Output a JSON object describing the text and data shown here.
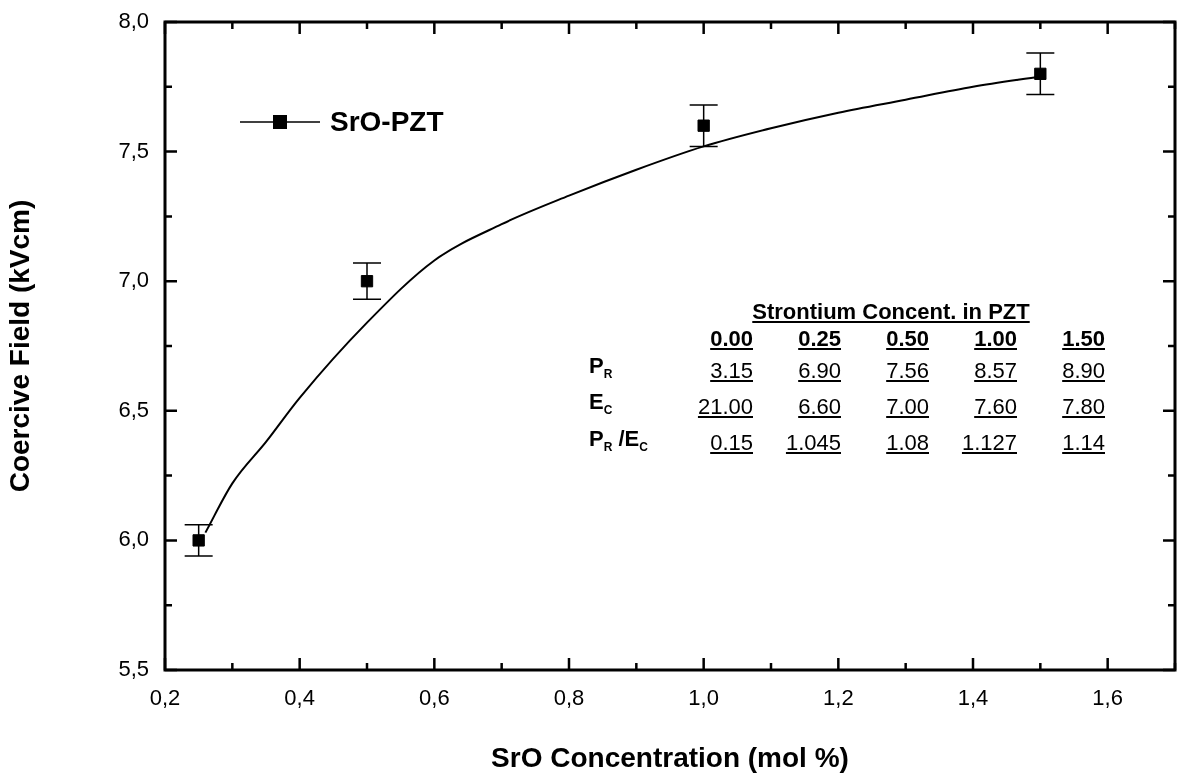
{
  "chart_data": {
    "type": "scatter",
    "xlabel": "SrO Concentration (mol %)",
    "ylabel": "Coercive Field (kVcm)",
    "xlim": [
      0.2,
      1.7
    ],
    "ylim": [
      5.5,
      8.0
    ],
    "xticks": [
      {
        "value": 0.2,
        "label": "0,2"
      },
      {
        "value": 0.3,
        "label": null
      },
      {
        "value": 0.4,
        "label": "0,4"
      },
      {
        "value": 0.5,
        "label": null
      },
      {
        "value": 0.6,
        "label": "0,6"
      },
      {
        "value": 0.7,
        "label": null
      },
      {
        "value": 0.8,
        "label": "0,8"
      },
      {
        "value": 0.9,
        "label": null
      },
      {
        "value": 1.0,
        "label": "1,0"
      },
      {
        "value": 1.1,
        "label": null
      },
      {
        "value": 1.2,
        "label": "1,2"
      },
      {
        "value": 1.3,
        "label": null
      },
      {
        "value": 1.4,
        "label": "1,4"
      },
      {
        "value": 1.5,
        "label": null
      },
      {
        "value": 1.6,
        "label": "1,6"
      },
      {
        "value": 1.7,
        "label": null
      }
    ],
    "yticks": [
      {
        "value": 5.5,
        "label": "5,5"
      },
      {
        "value": 5.75,
        "label": null
      },
      {
        "value": 6.0,
        "label": "6,0"
      },
      {
        "value": 6.25,
        "label": null
      },
      {
        "value": 6.5,
        "label": "6,5"
      },
      {
        "value": 6.75,
        "label": null
      },
      {
        "value": 7.0,
        "label": "7,0"
      },
      {
        "value": 7.25,
        "label": null
      },
      {
        "value": 7.5,
        "label": "7,5"
      },
      {
        "value": 7.75,
        "label": null
      },
      {
        "value": 8.0,
        "label": "8,0"
      }
    ],
    "legend": "top left",
    "series": [
      {
        "name": "SrO-PZT",
        "type": "scatter",
        "marker": "square",
        "color": "#000000",
        "x": [
          0.25,
          0.5,
          1.0,
          1.5
        ],
        "values": [
          6.0,
          7.0,
          7.6,
          7.8
        ],
        "errors": [
          0.06,
          0.07,
          0.08,
          0.08
        ]
      },
      {
        "type": "line",
        "marker": "none",
        "color": "#000000",
        "x": [
          0.26,
          0.3,
          0.35,
          0.4,
          0.5,
          0.6,
          0.7,
          0.8,
          0.9,
          1.0,
          1.1,
          1.2,
          1.3,
          1.4,
          1.5
        ],
        "values": [
          6.03,
          6.22,
          6.38,
          6.55,
          6.84,
          7.08,
          7.22,
          7.33,
          7.43,
          7.52,
          7.59,
          7.65,
          7.7,
          7.75,
          7.79
        ]
      }
    ],
    "annotations": [
      "Strontium Concent. in PZT",
      "0.00",
      "0.25",
      "0.50",
      "1.00",
      "1.50",
      "P$_{R}$",
      "3.15",
      "6.90",
      "7.56",
      "8.57",
      "8.90",
      "E$_{C}$",
      "21.00",
      "6.60",
      "7.00",
      "7.60",
      "7.80",
      "P$_{R}$ /E$_{C}$",
      "0.15",
      "1.045",
      "1.08",
      "1.127",
      "1.14"
    ]
  }
}
